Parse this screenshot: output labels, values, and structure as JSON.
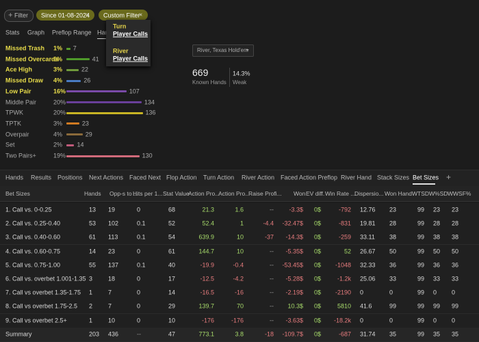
{
  "filters": {
    "add": "Filter",
    "chips": [
      "Since 01-08-2024",
      "Custom Filter"
    ]
  },
  "top_tabs": [
    "Stats",
    "Graph",
    "Preflop Range",
    "Hands"
  ],
  "popup": [
    {
      "street": "Turn",
      "action": "Player Calls"
    },
    {
      "street": "River",
      "action": "Player Calls"
    }
  ],
  "hand_groups": [
    {
      "name": "Missed Trash",
      "pct": "1%",
      "count": 7,
      "color": "#5aa02c",
      "highlighted": true
    },
    {
      "name": "Missed Overcards",
      "pct": "6%",
      "count": 41,
      "color": "#4f9a2a",
      "highlighted": true
    },
    {
      "name": "Ace High",
      "pct": "3%",
      "count": 22,
      "color": "#6f9a3a",
      "highlighted": true
    },
    {
      "name": "Missed Draw",
      "pct": "4%",
      "count": 26,
      "color": "#4a7cc4",
      "highlighted": true
    },
    {
      "name": "Low Pair",
      "pct": "16%",
      "count": 107,
      "color": "#7a4aa8",
      "highlighted": true
    },
    {
      "name": "Middle Pair",
      "pct": "20%",
      "count": 134,
      "color": "#6a3f9a",
      "highlighted": false
    },
    {
      "name": "TPWK",
      "pct": "20%",
      "count": 136,
      "color": "#c8b424",
      "highlighted": false
    },
    {
      "name": "TPTK",
      "pct": "3%",
      "count": 23,
      "color": "#d07a22",
      "highlighted": false
    },
    {
      "name": "Overpair",
      "pct": "4%",
      "count": 29,
      "color": "#8a6a3a",
      "highlighted": false
    },
    {
      "name": "Set",
      "pct": "2%",
      "count": 14,
      "color": "#c05a7a",
      "highlighted": false
    },
    {
      "name": "Two Pairs+",
      "pct": "19%",
      "count": 130,
      "color": "#d06a7a",
      "highlighted": false
    }
  ],
  "game_select": "River, Texas Hold'em",
  "known_hands": {
    "value": "669",
    "label": "Known Hands"
  },
  "weak": {
    "value": "14.3%",
    "label": "Weak"
  },
  "bottom_tabs": [
    "Hands",
    "Results",
    "Positions",
    "Next Actions",
    "Faced Next",
    "Flop Action",
    "Turn Action",
    "River Action",
    "Faced Action Preflop",
    "River Hand",
    "Stack Sizes",
    "Bet Sizes"
  ],
  "active_tab": 11,
  "table": {
    "columns": [
      "Bet Sizes",
      "Hands",
      "Opp-s to ...",
      "Hits per 1...",
      "Stat Value",
      "Action Pro...",
      "Action Pro...",
      "Raise Profi...",
      "Won",
      "EV diff.",
      "Win Rate ...",
      "Dispersio...",
      "Won Hand",
      "WTSD",
      "W%SD",
      "WWSF%"
    ],
    "rows": [
      [
        "1. Call vs. 0-0.25",
        "13",
        "19",
        "0",
        "68",
        "21.3",
        "1.6",
        "--",
        "-3.3$",
        "0$",
        "-792",
        "12.76",
        "23",
        "99",
        "23",
        "23"
      ],
      [
        "2. Call vs. 0.25-0.40",
        "53",
        "102",
        "0.1",
        "52",
        "52.4",
        "1",
        "-4.4",
        "-32.47$",
        "0$",
        "-831",
        "19.81",
        "28",
        "99",
        "28",
        "28"
      ],
      [
        "3. Call vs. 0.40-0.60",
        "61",
        "113",
        "0.1",
        "54",
        "639.9",
        "10",
        "-37",
        "-14.3$",
        "0$",
        "-259",
        "33.11",
        "38",
        "99",
        "38",
        "38"
      ],
      [
        "4. Call vs. 0.60-0.75",
        "14",
        "23",
        "0",
        "61",
        "144.7",
        "10",
        "--",
        "-5.35$",
        "0$",
        "52",
        "26.67",
        "50",
        "99",
        "50",
        "50"
      ],
      [
        "5. Call vs. 0.75-1.00",
        "55",
        "137",
        "0.1",
        "40",
        "-19.9",
        "-0.4",
        "--",
        "-53.45$",
        "0$",
        "-1048",
        "32.33",
        "36",
        "99",
        "36",
        "36"
      ],
      [
        "6. Call vs. overbet 1.001-1.35",
        "3",
        "18",
        "0",
        "17",
        "-12.5",
        "-4.2",
        "--",
        "-5.28$",
        "0$",
        "-1.2k",
        "25.06",
        "33",
        "99",
        "33",
        "33"
      ],
      [
        "7. Call vs overbet 1.35-1.75",
        "1",
        "7",
        "0",
        "14",
        "-16.5",
        "-16",
        "--",
        "-2.19$",
        "0$",
        "-2190",
        "0",
        "0",
        "99",
        "0",
        "0"
      ],
      [
        "8. Call vs overbet 1.75-2.5",
        "2",
        "7",
        "0",
        "29",
        "139.7",
        "70",
        "--",
        "10.3$",
        "0$",
        "5810",
        "41.6",
        "99",
        "99",
        "99",
        "99"
      ],
      [
        "9. Call vs overbet 2.5+",
        "1",
        "10",
        "0",
        "10",
        "-176",
        "-176",
        "--",
        "-3.63$",
        "0$",
        "-18.2k",
        "0",
        "0",
        "99",
        "0",
        "0"
      ]
    ],
    "summary": [
      "Summary",
      "203",
      "436",
      "--",
      "47",
      "773.1",
      "3.8",
      "-18",
      "-109.7$",
      "0$",
      "-687",
      "31.74",
      "35",
      "99",
      "35",
      "35"
    ]
  }
}
